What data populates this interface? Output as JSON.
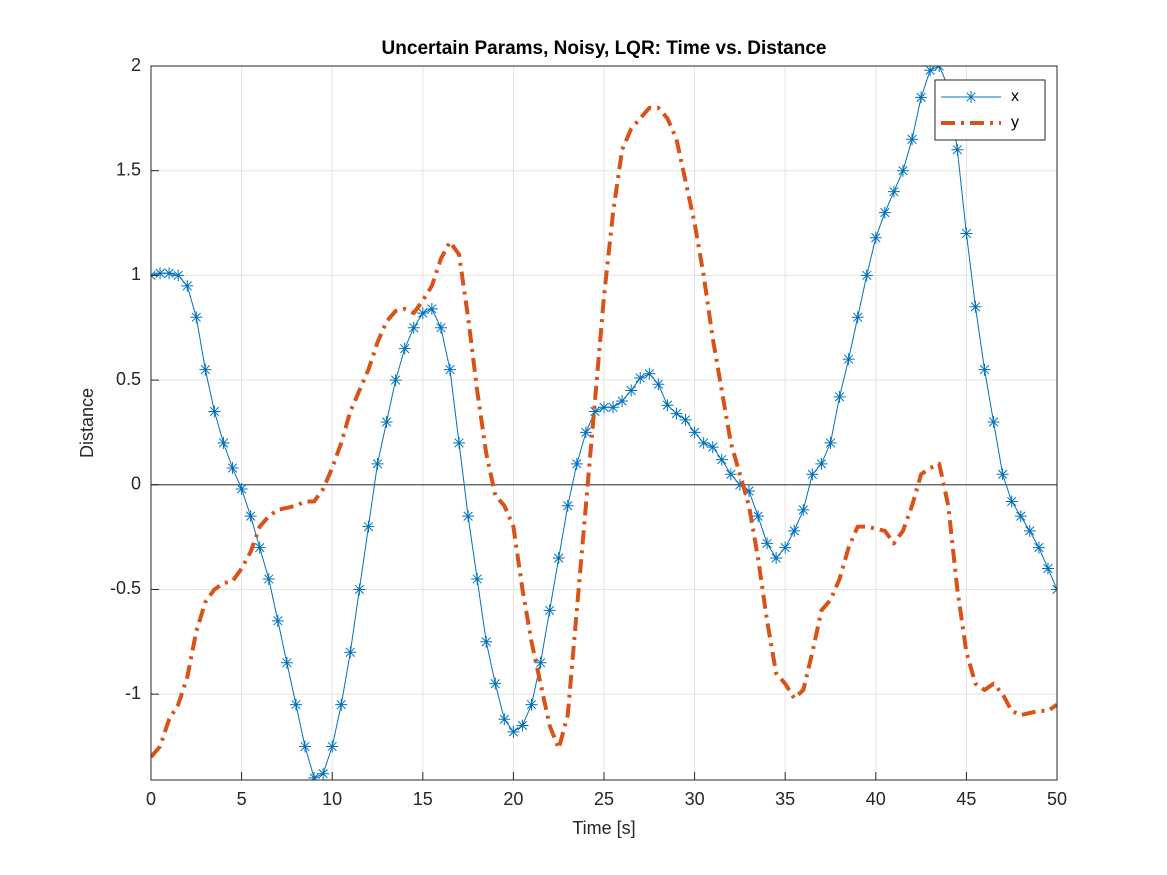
{
  "chart_data": {
    "type": "line",
    "title": "Uncertain Params, Noisy, LQR: Time vs. Distance",
    "xlabel": "Time [s]",
    "ylabel": "Distance",
    "x": [
      0,
      0.5,
      1,
      1.5,
      2,
      2.5,
      3,
      3.5,
      4,
      4.5,
      5,
      5.5,
      6,
      6.5,
      7,
      7.5,
      8,
      8.5,
      9,
      9.5,
      10,
      10.5,
      11,
      11.5,
      12,
      12.5,
      13,
      13.5,
      14,
      14.5,
      15,
      15.5,
      16,
      16.5,
      17,
      17.5,
      18,
      18.5,
      19,
      19.5,
      20,
      20.5,
      21,
      21.5,
      22,
      22.5,
      23,
      23.5,
      24,
      24.5,
      25,
      25.5,
      26,
      26.5,
      27,
      27.5,
      28,
      28.5,
      29,
      29.5,
      30,
      30.5,
      31,
      31.5,
      32,
      32.5,
      33,
      33.5,
      34,
      34.5,
      35,
      35.5,
      36,
      36.5,
      37,
      37.5,
      38,
      38.5,
      39,
      39.5,
      40,
      40.5,
      41,
      41.5,
      42,
      42.5,
      43,
      43.5,
      44,
      44.5,
      45,
      45.5,
      46,
      46.5,
      47,
      47.5,
      48,
      48.5,
      49,
      49.5,
      50
    ],
    "series": [
      {
        "name": "x",
        "color": "#0072bd",
        "style": "marker",
        "values": [
          1.0,
          1.01,
          1.01,
          1.0,
          0.95,
          0.8,
          0.55,
          0.35,
          0.2,
          0.08,
          -0.02,
          -0.15,
          -0.3,
          -0.45,
          -0.65,
          -0.85,
          -1.05,
          -1.25,
          -1.4,
          -1.38,
          -1.25,
          -1.05,
          -0.8,
          -0.5,
          -0.2,
          0.1,
          0.3,
          0.5,
          0.65,
          0.75,
          0.82,
          0.84,
          0.75,
          0.55,
          0.2,
          -0.15,
          -0.45,
          -0.75,
          -0.95,
          -1.12,
          -1.18,
          -1.15,
          -1.05,
          -0.85,
          -0.6,
          -0.35,
          -0.1,
          0.1,
          0.25,
          0.35,
          0.37,
          0.37,
          0.4,
          0.45,
          0.51,
          0.53,
          0.48,
          0.38,
          0.34,
          0.31,
          0.25,
          0.2,
          0.18,
          0.12,
          0.05,
          0.0,
          -0.03,
          -0.15,
          -0.28,
          -0.35,
          -0.3,
          -0.22,
          -0.12,
          0.05,
          0.1,
          0.2,
          0.42,
          0.6,
          0.8,
          1.0,
          1.18,
          1.3,
          1.4,
          1.5,
          1.65,
          1.85,
          1.98,
          2.0,
          1.9,
          1.6,
          1.2,
          0.85,
          0.55,
          0.3,
          0.05,
          -0.08,
          -0.15,
          -0.22,
          -0.3,
          -0.4,
          -0.5
        ]
      },
      {
        "name": "y",
        "color": "#d95319",
        "style": "dashdot",
        "values": [
          -1.3,
          -1.25,
          -1.12,
          -1.05,
          -0.92,
          -0.7,
          -0.56,
          -0.5,
          -0.47,
          -0.46,
          -0.4,
          -0.32,
          -0.2,
          -0.15,
          -0.12,
          -0.11,
          -0.1,
          -0.08,
          -0.08,
          -0.02,
          0.08,
          0.2,
          0.35,
          0.45,
          0.55,
          0.68,
          0.78,
          0.83,
          0.84,
          0.82,
          0.88,
          0.95,
          1.08,
          1.16,
          1.1,
          0.8,
          0.45,
          0.15,
          -0.05,
          -0.1,
          -0.2,
          -0.5,
          -0.75,
          -0.95,
          -1.15,
          -1.26,
          -1.1,
          -0.6,
          -0.1,
          0.4,
          0.9,
          1.3,
          1.6,
          1.7,
          1.75,
          1.8,
          1.8,
          1.75,
          1.65,
          1.45,
          1.25,
          1.0,
          0.7,
          0.45,
          0.2,
          0.05,
          -0.1,
          -0.35,
          -0.65,
          -0.9,
          -0.95,
          -1.02,
          -0.98,
          -0.8,
          -0.6,
          -0.55,
          -0.45,
          -0.3,
          -0.2,
          -0.2,
          -0.21,
          -0.22,
          -0.28,
          -0.22,
          -0.1,
          0.05,
          0.08,
          0.1,
          -0.1,
          -0.5,
          -0.8,
          -0.95,
          -0.98,
          -0.95,
          -1.0,
          -1.08,
          -1.1,
          -1.09,
          -1.08,
          -1.08,
          -1.05
        ]
      }
    ],
    "xlim": [
      0,
      50
    ],
    "ylim": [
      -1.41,
      2
    ],
    "xticks": [
      0,
      5,
      10,
      15,
      20,
      25,
      30,
      35,
      40,
      45,
      50
    ],
    "yticks": [
      -1,
      -0.5,
      0,
      0.5,
      1,
      1.5,
      2
    ],
    "grid": true,
    "zero_line": 0,
    "legend": "top-right"
  }
}
